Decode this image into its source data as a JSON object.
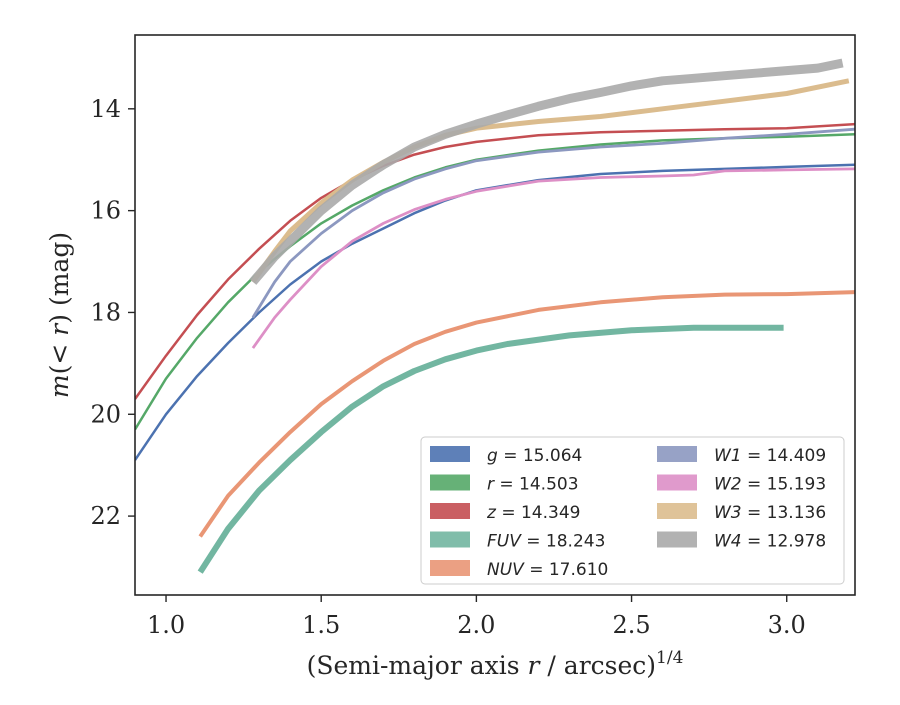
{
  "chart_data": {
    "type": "line",
    "xlabel_main": "(Semi-major axis ",
    "xlabel_var": "r",
    "xlabel_rest": " / arcsec)",
    "xlabel_exp": "1/4",
    "ylabel_var_m": "m",
    "ylabel_open": "(< ",
    "ylabel_var_r": "r",
    "ylabel_close": ") (mag)",
    "xlim": [
      0.9,
      3.22
    ],
    "ylim": [
      23.55,
      12.55
    ],
    "y_inverted": true,
    "xticks": [
      1.0,
      1.5,
      2.0,
      2.5,
      3.0
    ],
    "xtick_labels": [
      "1.0",
      "1.5",
      "2.0",
      "2.5",
      "3.0"
    ],
    "yticks": [
      14,
      16,
      18,
      20,
      22
    ],
    "ytick_labels": [
      "14",
      "16",
      "18",
      "20",
      "22"
    ],
    "grid": false,
    "legend_position": "lower-right",
    "series": [
      {
        "name": "g",
        "value_text": " = 15.064",
        "color": "#4c72b0",
        "x": [
          0.9,
          1.0,
          1.1,
          1.2,
          1.3,
          1.4,
          1.5,
          1.6,
          1.7,
          1.8,
          1.9,
          2.0,
          2.2,
          2.4,
          2.6,
          2.8,
          3.0,
          3.22
        ],
        "y": [
          20.9,
          20.0,
          19.25,
          18.6,
          18.0,
          17.45,
          17.0,
          16.65,
          16.35,
          16.05,
          15.8,
          15.6,
          15.4,
          15.28,
          15.22,
          15.18,
          15.14,
          15.1
        ]
      },
      {
        "name": "r",
        "value_text": " = 14.503",
        "color": "#55a868",
        "x": [
          0.9,
          1.0,
          1.1,
          1.2,
          1.3,
          1.4,
          1.5,
          1.6,
          1.7,
          1.8,
          1.9,
          2.0,
          2.2,
          2.4,
          2.6,
          2.8,
          3.0,
          3.22
        ],
        "y": [
          20.3,
          19.3,
          18.5,
          17.8,
          17.2,
          16.7,
          16.25,
          15.9,
          15.6,
          15.35,
          15.15,
          15.0,
          14.82,
          14.7,
          14.62,
          14.58,
          14.55,
          14.5
        ]
      },
      {
        "name": "z",
        "value_text": " = 14.349",
        "color": "#c44e52",
        "x": [
          0.9,
          1.0,
          1.1,
          1.2,
          1.3,
          1.4,
          1.5,
          1.6,
          1.7,
          1.8,
          1.9,
          2.0,
          2.2,
          2.4,
          2.6,
          2.8,
          3.0,
          3.22
        ],
        "y": [
          19.7,
          18.85,
          18.05,
          17.35,
          16.75,
          16.2,
          15.75,
          15.4,
          15.12,
          14.9,
          14.75,
          14.65,
          14.52,
          14.46,
          14.43,
          14.4,
          14.38,
          14.3
        ]
      },
      {
        "name": "FUV",
        "value_text": " = 18.243",
        "color": "#72b6a1",
        "x": [
          1.11,
          1.2,
          1.3,
          1.4,
          1.5,
          1.6,
          1.7,
          1.8,
          1.9,
          2.0,
          2.1,
          2.3,
          2.5,
          2.7,
          2.99
        ],
        "y": [
          23.1,
          22.25,
          21.5,
          20.9,
          20.35,
          19.85,
          19.45,
          19.15,
          18.92,
          18.75,
          18.62,
          18.45,
          18.35,
          18.3,
          18.3
        ]
      },
      {
        "name": "NUV",
        "value_text": " = 17.610",
        "color": "#e99675",
        "x": [
          1.11,
          1.2,
          1.3,
          1.4,
          1.5,
          1.6,
          1.7,
          1.8,
          1.9,
          2.0,
          2.2,
          2.4,
          2.6,
          2.8,
          3.0,
          3.22
        ],
        "y": [
          22.4,
          21.6,
          20.95,
          20.35,
          19.8,
          19.35,
          18.95,
          18.62,
          18.38,
          18.2,
          17.95,
          17.8,
          17.7,
          17.65,
          17.64,
          17.6
        ]
      },
      {
        "name": "W1",
        "value_text": " = 14.409",
        "color": "#8c98c0",
        "x": [
          1.28,
          1.35,
          1.4,
          1.5,
          1.6,
          1.7,
          1.8,
          1.9,
          2.0,
          2.2,
          2.4,
          2.6,
          2.8,
          3.0,
          3.22
        ],
        "y": [
          18.1,
          17.4,
          17.0,
          16.45,
          16.0,
          15.65,
          15.38,
          15.18,
          15.02,
          14.85,
          14.75,
          14.68,
          14.58,
          14.5,
          14.4
        ]
      },
      {
        "name": "W2",
        "value_text": " = 15.193",
        "color": "#dd8fc6",
        "x": [
          1.28,
          1.35,
          1.4,
          1.5,
          1.6,
          1.7,
          1.8,
          1.9,
          2.0,
          2.2,
          2.4,
          2.6,
          2.7,
          2.8,
          3.0,
          3.22
        ],
        "y": [
          18.7,
          18.1,
          17.75,
          17.1,
          16.6,
          16.25,
          15.98,
          15.78,
          15.62,
          15.42,
          15.35,
          15.32,
          15.3,
          15.22,
          15.2,
          15.18
        ]
      },
      {
        "name": "W3",
        "value_text": " = 13.136",
        "color": "#dbbc8e",
        "x": [
          1.28,
          1.35,
          1.4,
          1.5,
          1.6,
          1.7,
          1.8,
          1.9,
          2.0,
          2.2,
          2.4,
          2.6,
          2.8,
          3.0,
          3.2
        ],
        "y": [
          17.4,
          16.8,
          16.4,
          15.85,
          15.4,
          15.05,
          14.75,
          14.52,
          14.38,
          14.25,
          14.15,
          14.0,
          13.85,
          13.7,
          13.45
        ]
      },
      {
        "name": "W4",
        "value_text": " = 12.978",
        "color": "#aaaaaa",
        "x": [
          1.28,
          1.35,
          1.4,
          1.5,
          1.6,
          1.7,
          1.8,
          1.9,
          2.0,
          2.1,
          2.2,
          2.3,
          2.4,
          2.5,
          2.6,
          2.7,
          2.8,
          2.9,
          3.0,
          3.1,
          3.18
        ],
        "y": [
          17.4,
          16.9,
          16.6,
          16.0,
          15.5,
          15.1,
          14.75,
          14.5,
          14.3,
          14.12,
          13.95,
          13.8,
          13.68,
          13.55,
          13.45,
          13.4,
          13.35,
          13.3,
          13.25,
          13.2,
          13.1
        ]
      }
    ]
  }
}
